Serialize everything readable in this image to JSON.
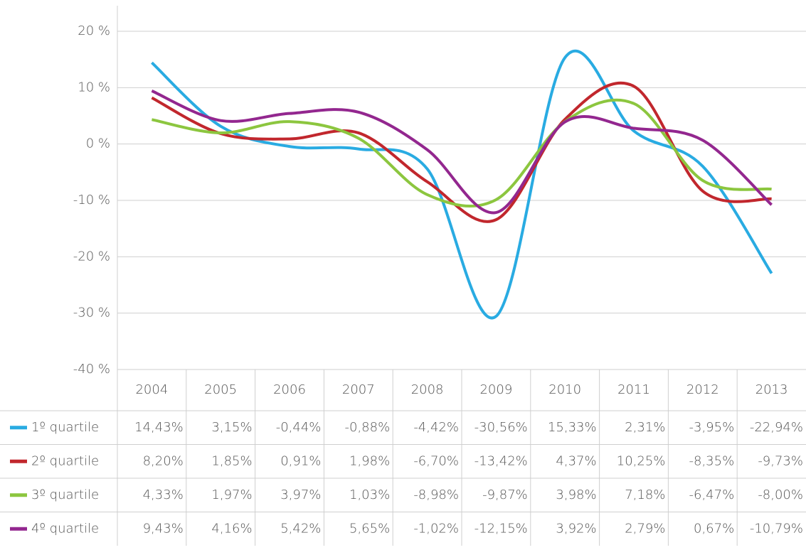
{
  "chart_data": {
    "type": "line",
    "categories": [
      "2004",
      "2005",
      "2006",
      "2007",
      "2008",
      "2009",
      "2010",
      "2011",
      "2012",
      "2013"
    ],
    "series": [
      {
        "name": "1º quartile",
        "color": "#29abe2",
        "values": [
          14.43,
          3.15,
          -0.44,
          -0.88,
          -4.42,
          -30.56,
          15.33,
          2.31,
          -3.95,
          -22.94
        ],
        "value_labels": [
          "14,43%",
          "3,15%",
          "-0,44%",
          "-0,88%",
          "-4,42%",
          "-30,56%",
          "15,33%",
          "2,31%",
          "-3,95%",
          "-22,94%"
        ]
      },
      {
        "name": "2º quartile",
        "color": "#c1272d",
        "values": [
          8.2,
          1.85,
          0.91,
          1.98,
          -6.7,
          -13.42,
          4.37,
          10.25,
          -8.35,
          -9.73
        ],
        "value_labels": [
          "8,20%",
          "1,85%",
          "0,91%",
          "1,98%",
          "-6,70%",
          "-13,42%",
          "4,37%",
          "10,25%",
          "-8,35%",
          "-9,73%"
        ]
      },
      {
        "name": "3º quartile",
        "color": "#8cc63f",
        "values": [
          4.33,
          1.97,
          3.97,
          1.03,
          -8.98,
          -9.87,
          3.98,
          7.18,
          -6.47,
          -8.0
        ],
        "value_labels": [
          "4,33%",
          "1,97%",
          "3,97%",
          "1,03%",
          "-8,98%",
          "-9,87%",
          "3,98%",
          "7,18%",
          "-6,47%",
          "-8,00%"
        ]
      },
      {
        "name": "4º quartile",
        "color": "#93278f",
        "values": [
          9.43,
          4.16,
          5.42,
          5.65,
          -1.02,
          -12.15,
          3.92,
          2.79,
          0.67,
          -10.79
        ],
        "value_labels": [
          "9,43%",
          "4,16%",
          "5,42%",
          "5,65%",
          "-1,02%",
          "-12,15%",
          "3,92%",
          "2,79%",
          "0,67%",
          "-10,79%"
        ]
      }
    ],
    "ylim": [
      -40,
      20
    ],
    "yticks": [
      {
        "value": 20,
        "label": "20 %"
      },
      {
        "value": 10,
        "label": "10 %"
      },
      {
        "value": 0,
        "label": "0 %"
      },
      {
        "value": -10,
        "label": "-10 %"
      },
      {
        "value": -20,
        "label": "-20 %"
      },
      {
        "value": -30,
        "label": "-30 %"
      },
      {
        "value": -40,
        "label": "-40 %"
      }
    ],
    "grid": true
  }
}
